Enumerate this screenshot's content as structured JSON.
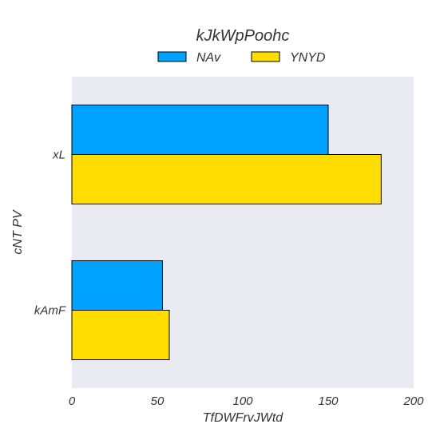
{
  "chart_data": {
    "type": "bar",
    "orientation": "horizontal",
    "title": "kJkWpPoohc",
    "xlabel": "TfDWFrvJWtd",
    "ylabel": "cNT PV",
    "categories": [
      "xL",
      "kAmF"
    ],
    "series": [
      {
        "name": "NAv",
        "values": [
          150,
          53
        ],
        "color": "#00a2ff"
      },
      {
        "name": "YNYD",
        "values": [
          181,
          57
        ],
        "color": "#ffdd00"
      }
    ],
    "xlim": [
      0,
      200
    ],
    "xticks": [
      0,
      50,
      100,
      150,
      200
    ],
    "grid": false,
    "legend_position": "top-center",
    "plot_background": "#eaeaf2"
  }
}
